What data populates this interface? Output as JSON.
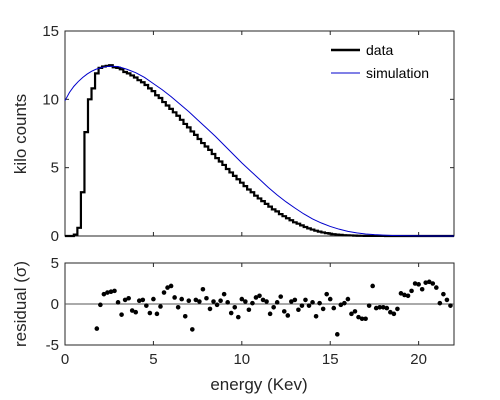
{
  "chart_data": [
    {
      "type": "line",
      "ylabel": "kilo counts",
      "xlim": [
        0,
        22
      ],
      "ylim": [
        0,
        15
      ],
      "xticks": [
        0,
        5,
        10,
        15,
        20
      ],
      "yticks": [
        0,
        5,
        10,
        15
      ],
      "legend": {
        "placement": "top-right",
        "entries": [
          "data",
          "simulation"
        ]
      },
      "series": [
        {
          "name": "data",
          "color": "#000000",
          "style": "step",
          "x": [
            0,
            0.5,
            0.7,
            0.9,
            1.1,
            1.3,
            1.5,
            1.7,
            1.9,
            2.1,
            2.3,
            2.5,
            2.7,
            2.9,
            3.1,
            3.3,
            3.5,
            3.7,
            3.9,
            4.1,
            4.3,
            4.5,
            4.7,
            4.9,
            5.1,
            5.3,
            5.5,
            5.7,
            5.9,
            6.1,
            6.3,
            6.5,
            6.7,
            6.9,
            7.1,
            7.3,
            7.5,
            7.7,
            7.9,
            8.1,
            8.3,
            8.5,
            8.7,
            8.9,
            9.1,
            9.3,
            9.5,
            9.7,
            9.9,
            10.1,
            10.3,
            10.5,
            10.7,
            10.9,
            11.1,
            11.3,
            11.5,
            11.7,
            11.9,
            12.1,
            12.3,
            12.5,
            12.7,
            12.9,
            13.1,
            13.3,
            13.5,
            13.7,
            13.9,
            14.1,
            14.3,
            14.5,
            14.7,
            14.9,
            15.1,
            15.3,
            15.5,
            15.7,
            15.9,
            16.1,
            16.3,
            16.5,
            16.7,
            16.9,
            17.1,
            17.3,
            17.5,
            17.7,
            17.9,
            18.1,
            18.3,
            18.5,
            18.7,
            18.9,
            19.1,
            19.3,
            19.5
          ],
          "y": [
            0,
            0.1,
            0.6,
            3.2,
            7.6,
            10.0,
            10.8,
            11.9,
            12.3,
            12.4,
            12.45,
            12.5,
            12.35,
            12.3,
            12.2,
            12.0,
            11.9,
            11.75,
            11.6,
            11.4,
            11.25,
            11.05,
            10.8,
            10.6,
            10.3,
            10.1,
            9.8,
            9.55,
            9.3,
            9.05,
            8.8,
            8.5,
            8.2,
            7.95,
            7.65,
            7.4,
            7.1,
            6.8,
            6.55,
            6.3,
            6.0,
            5.7,
            5.45,
            5.2,
            4.9,
            4.65,
            4.4,
            4.15,
            3.9,
            3.65,
            3.4,
            3.2,
            2.95,
            2.75,
            2.55,
            2.35,
            2.15,
            1.95,
            1.8,
            1.6,
            1.45,
            1.3,
            1.15,
            1.0,
            0.9,
            0.78,
            0.66,
            0.56,
            0.47,
            0.39,
            0.32,
            0.26,
            0.21,
            0.17,
            0.13,
            0.1,
            0.08,
            0.06,
            0.05,
            0.04,
            0.03,
            0.02,
            0.015,
            0.01,
            0.008,
            0.006,
            0.005,
            0.004,
            0.003,
            0.002,
            0.002,
            0.001,
            0.001,
            0.001,
            0,
            0,
            0
          ]
        },
        {
          "name": "simulation",
          "color": "#0000cc",
          "style": "line",
          "x": [
            0,
            0.25,
            0.5,
            0.75,
            1.0,
            1.25,
            1.5,
            1.75,
            2.0,
            2.25,
            2.5,
            3.0,
            3.5,
            4.0,
            4.5,
            5.0,
            5.5,
            6.0,
            6.5,
            7.0,
            7.5,
            8.0,
            8.5,
            9.0,
            9.5,
            10.0,
            10.5,
            11.0,
            11.5,
            12.0,
            12.5,
            13.0,
            13.5,
            14.0,
            14.5,
            15.0,
            15.5,
            16.0,
            16.5,
            17.0,
            17.5,
            18.0,
            18.5,
            19.0,
            19.5,
            20.0,
            21.0,
            22.0
          ],
          "y": [
            9.9,
            10.5,
            10.95,
            11.3,
            11.6,
            11.85,
            12.05,
            12.2,
            12.3,
            12.38,
            12.42,
            12.4,
            12.2,
            11.95,
            11.6,
            11.15,
            10.7,
            10.2,
            9.65,
            9.1,
            8.5,
            7.9,
            7.3,
            6.65,
            6.0,
            5.35,
            4.75,
            4.15,
            3.55,
            3.0,
            2.5,
            2.05,
            1.62,
            1.25,
            0.95,
            0.7,
            0.5,
            0.34,
            0.23,
            0.15,
            0.1,
            0.065,
            0.04,
            0.025,
            0.015,
            0.01,
            0.004,
            0.002
          ]
        }
      ]
    },
    {
      "type": "scatter",
      "xlabel": "energy (Kev)",
      "ylabel": "residual (σ)",
      "xlim": [
        0,
        22
      ],
      "ylim": [
        -5,
        5
      ],
      "xticks": [
        0,
        5,
        10,
        15,
        20
      ],
      "yticks": [
        -5,
        0,
        5
      ],
      "zero_line": true,
      "series": [
        {
          "color": "#000000",
          "x": [
            1.8,
            2.0,
            2.2,
            2.4,
            2.6,
            2.8,
            3.0,
            3.2,
            3.4,
            3.6,
            3.8,
            4.0,
            4.2,
            4.4,
            4.6,
            4.8,
            5.0,
            5.2,
            5.4,
            5.6,
            5.8,
            6.0,
            6.2,
            6.4,
            6.6,
            6.8,
            7.0,
            7.2,
            7.4,
            7.6,
            7.8,
            8.0,
            8.2,
            8.4,
            8.6,
            8.8,
            9.0,
            9.2,
            9.4,
            9.6,
            9.8,
            10.0,
            10.2,
            10.4,
            10.6,
            10.8,
            11.0,
            11.2,
            11.4,
            11.6,
            11.8,
            12.0,
            12.2,
            12.4,
            12.6,
            12.8,
            13.0,
            13.2,
            13.4,
            13.6,
            13.8,
            14.0,
            14.2,
            14.4,
            14.6,
            14.8,
            15.0,
            15.2,
            15.4,
            15.6,
            15.8,
            16.0,
            16.2,
            16.4,
            16.6,
            16.8,
            17.0,
            17.2,
            17.4,
            17.6,
            17.8,
            18.0,
            18.2,
            18.4,
            18.6,
            18.8,
            19.0,
            19.2,
            19.4,
            19.6,
            19.8,
            20.0,
            20.2,
            20.4,
            20.6,
            20.8,
            21.0,
            21.2,
            21.4,
            21.6,
            21.8
          ],
          "y": [
            -3.0,
            -0.1,
            1.2,
            1.4,
            1.5,
            1.6,
            0.2,
            -1.3,
            0.5,
            0.7,
            -0.8,
            -1.0,
            0.4,
            0.5,
            -0.2,
            -1.1,
            0.6,
            -1.2,
            -0.3,
            1.4,
            2.0,
            2.2,
            0.8,
            -0.4,
            0.6,
            -1.5,
            0.4,
            -3.1,
            0.5,
            0.3,
            1.8,
            0.7,
            -0.6,
            0.3,
            -0.1,
            0.4,
            1.2,
            0.2,
            -1.1,
            -0.4,
            -1.6,
            0.6,
            0.3,
            -0.7,
            0.1,
            0.8,
            1.0,
            0.5,
            0.3,
            -1.2,
            -0.4,
            0.2,
            0.9,
            -0.9,
            -1.4,
            0.3,
            0.5,
            -0.7,
            -0.2,
            0.5,
            -0.2,
            0.2,
            -1.5,
            0.1,
            -0.6,
            1.2,
            0.6,
            -0.5,
            -3.7,
            -0.1,
            0.1,
            0.6,
            -1.2,
            -0.9,
            -1.6,
            -1.8,
            -1.8,
            -0.2,
            2.2,
            -0.5,
            -0.4,
            -0.4,
            -0.5,
            -1.0,
            -1.2,
            -0.6,
            1.3,
            1.1,
            1.0,
            1.6,
            2.5,
            2.4,
            1.8,
            2.6,
            2.7,
            2.5,
            2.0,
            0.1,
            1.2,
            0.5,
            -0.2
          ]
        }
      ]
    }
  ]
}
